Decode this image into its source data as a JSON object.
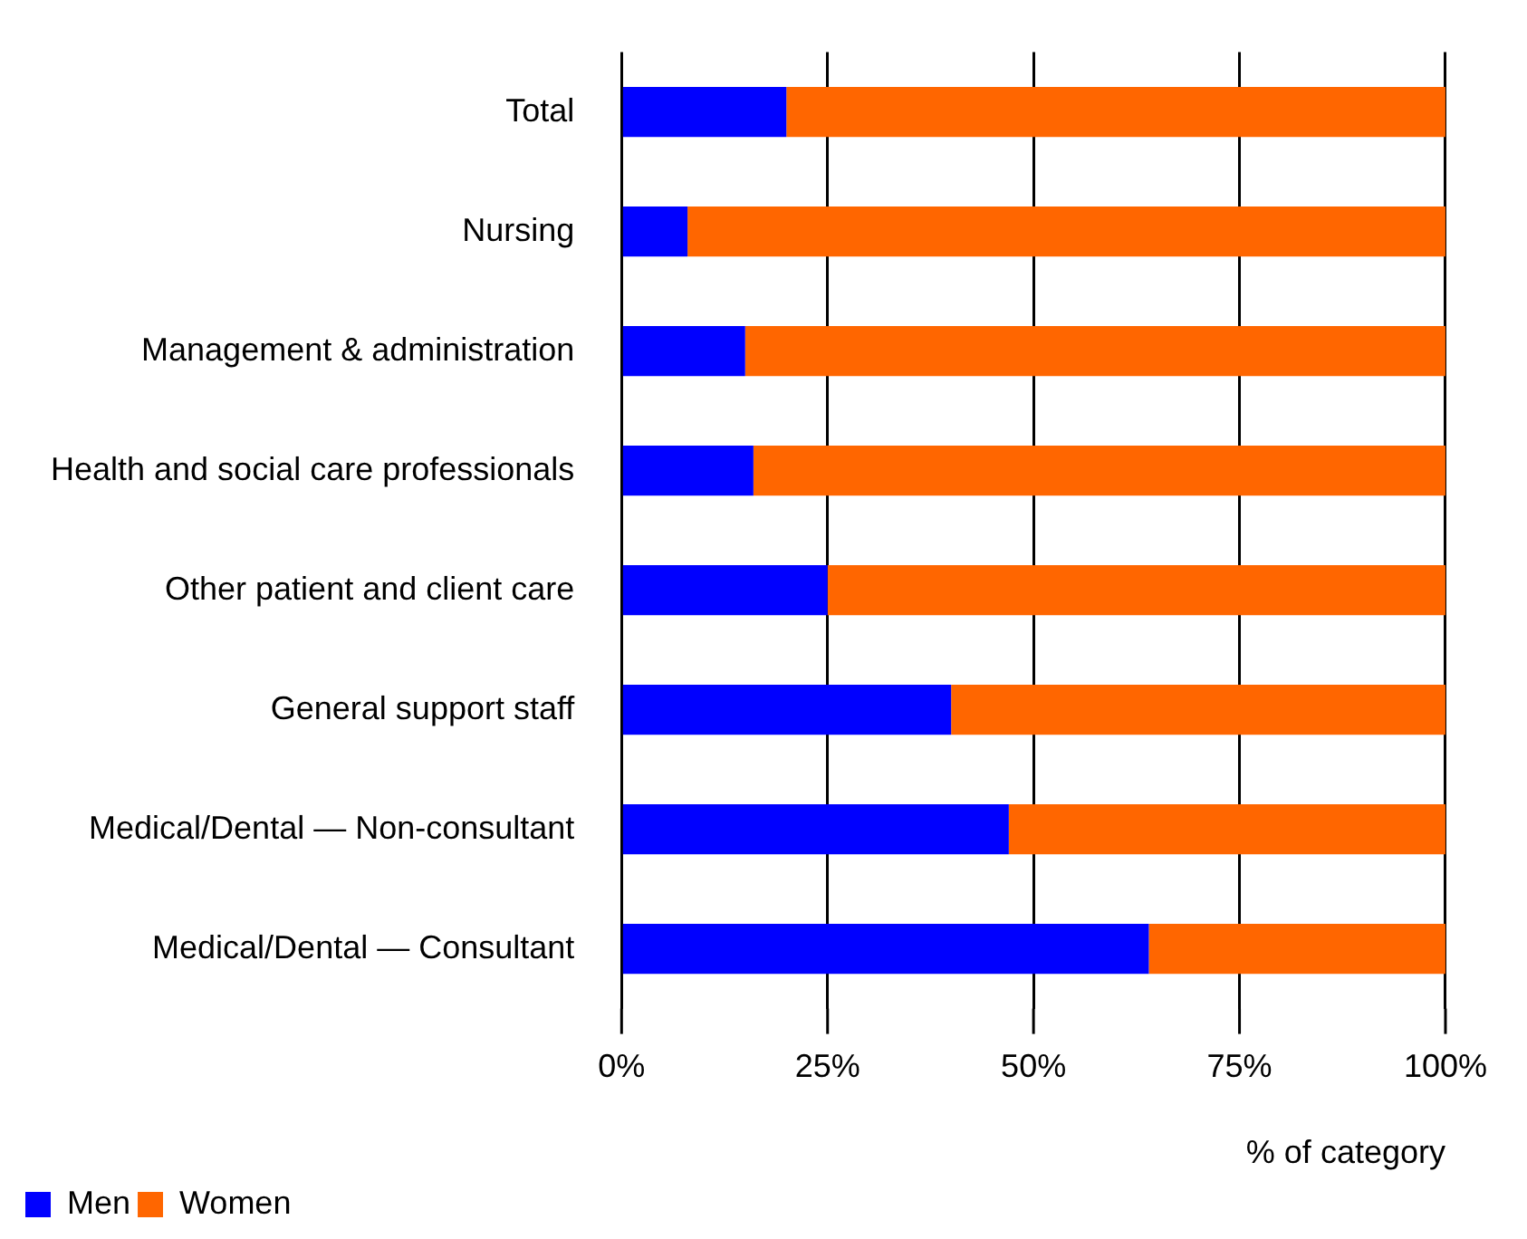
{
  "chart_data": {
    "type": "bar",
    "orientation": "horizontal",
    "stacked": true,
    "categories": [
      "Total",
      "Nursing",
      "Management & administration",
      "Health and social care professionals",
      "Other patient and client care",
      "General support staff",
      "Medical/Dental — Non-consultant",
      "Medical/Dental — Consultant"
    ],
    "series": [
      {
        "name": "Men",
        "color": "#0000ff",
        "values": [
          20,
          8,
          15,
          16,
          25,
          40,
          47,
          64
        ]
      },
      {
        "name": "Women",
        "color": "#ff6600",
        "values": [
          80,
          92,
          85,
          84,
          75,
          60,
          53,
          36
        ]
      }
    ],
    "xlabel": "% of category",
    "xlim": [
      0,
      100
    ],
    "xticks": [
      {
        "value": 0,
        "label": "0%"
      },
      {
        "value": 25,
        "label": "25%"
      },
      {
        "value": 50,
        "label": "50%"
      },
      {
        "value": 75,
        "label": "75%"
      },
      {
        "value": 100,
        "label": "100%"
      }
    ],
    "grid": "x",
    "legend": "bottom left"
  }
}
